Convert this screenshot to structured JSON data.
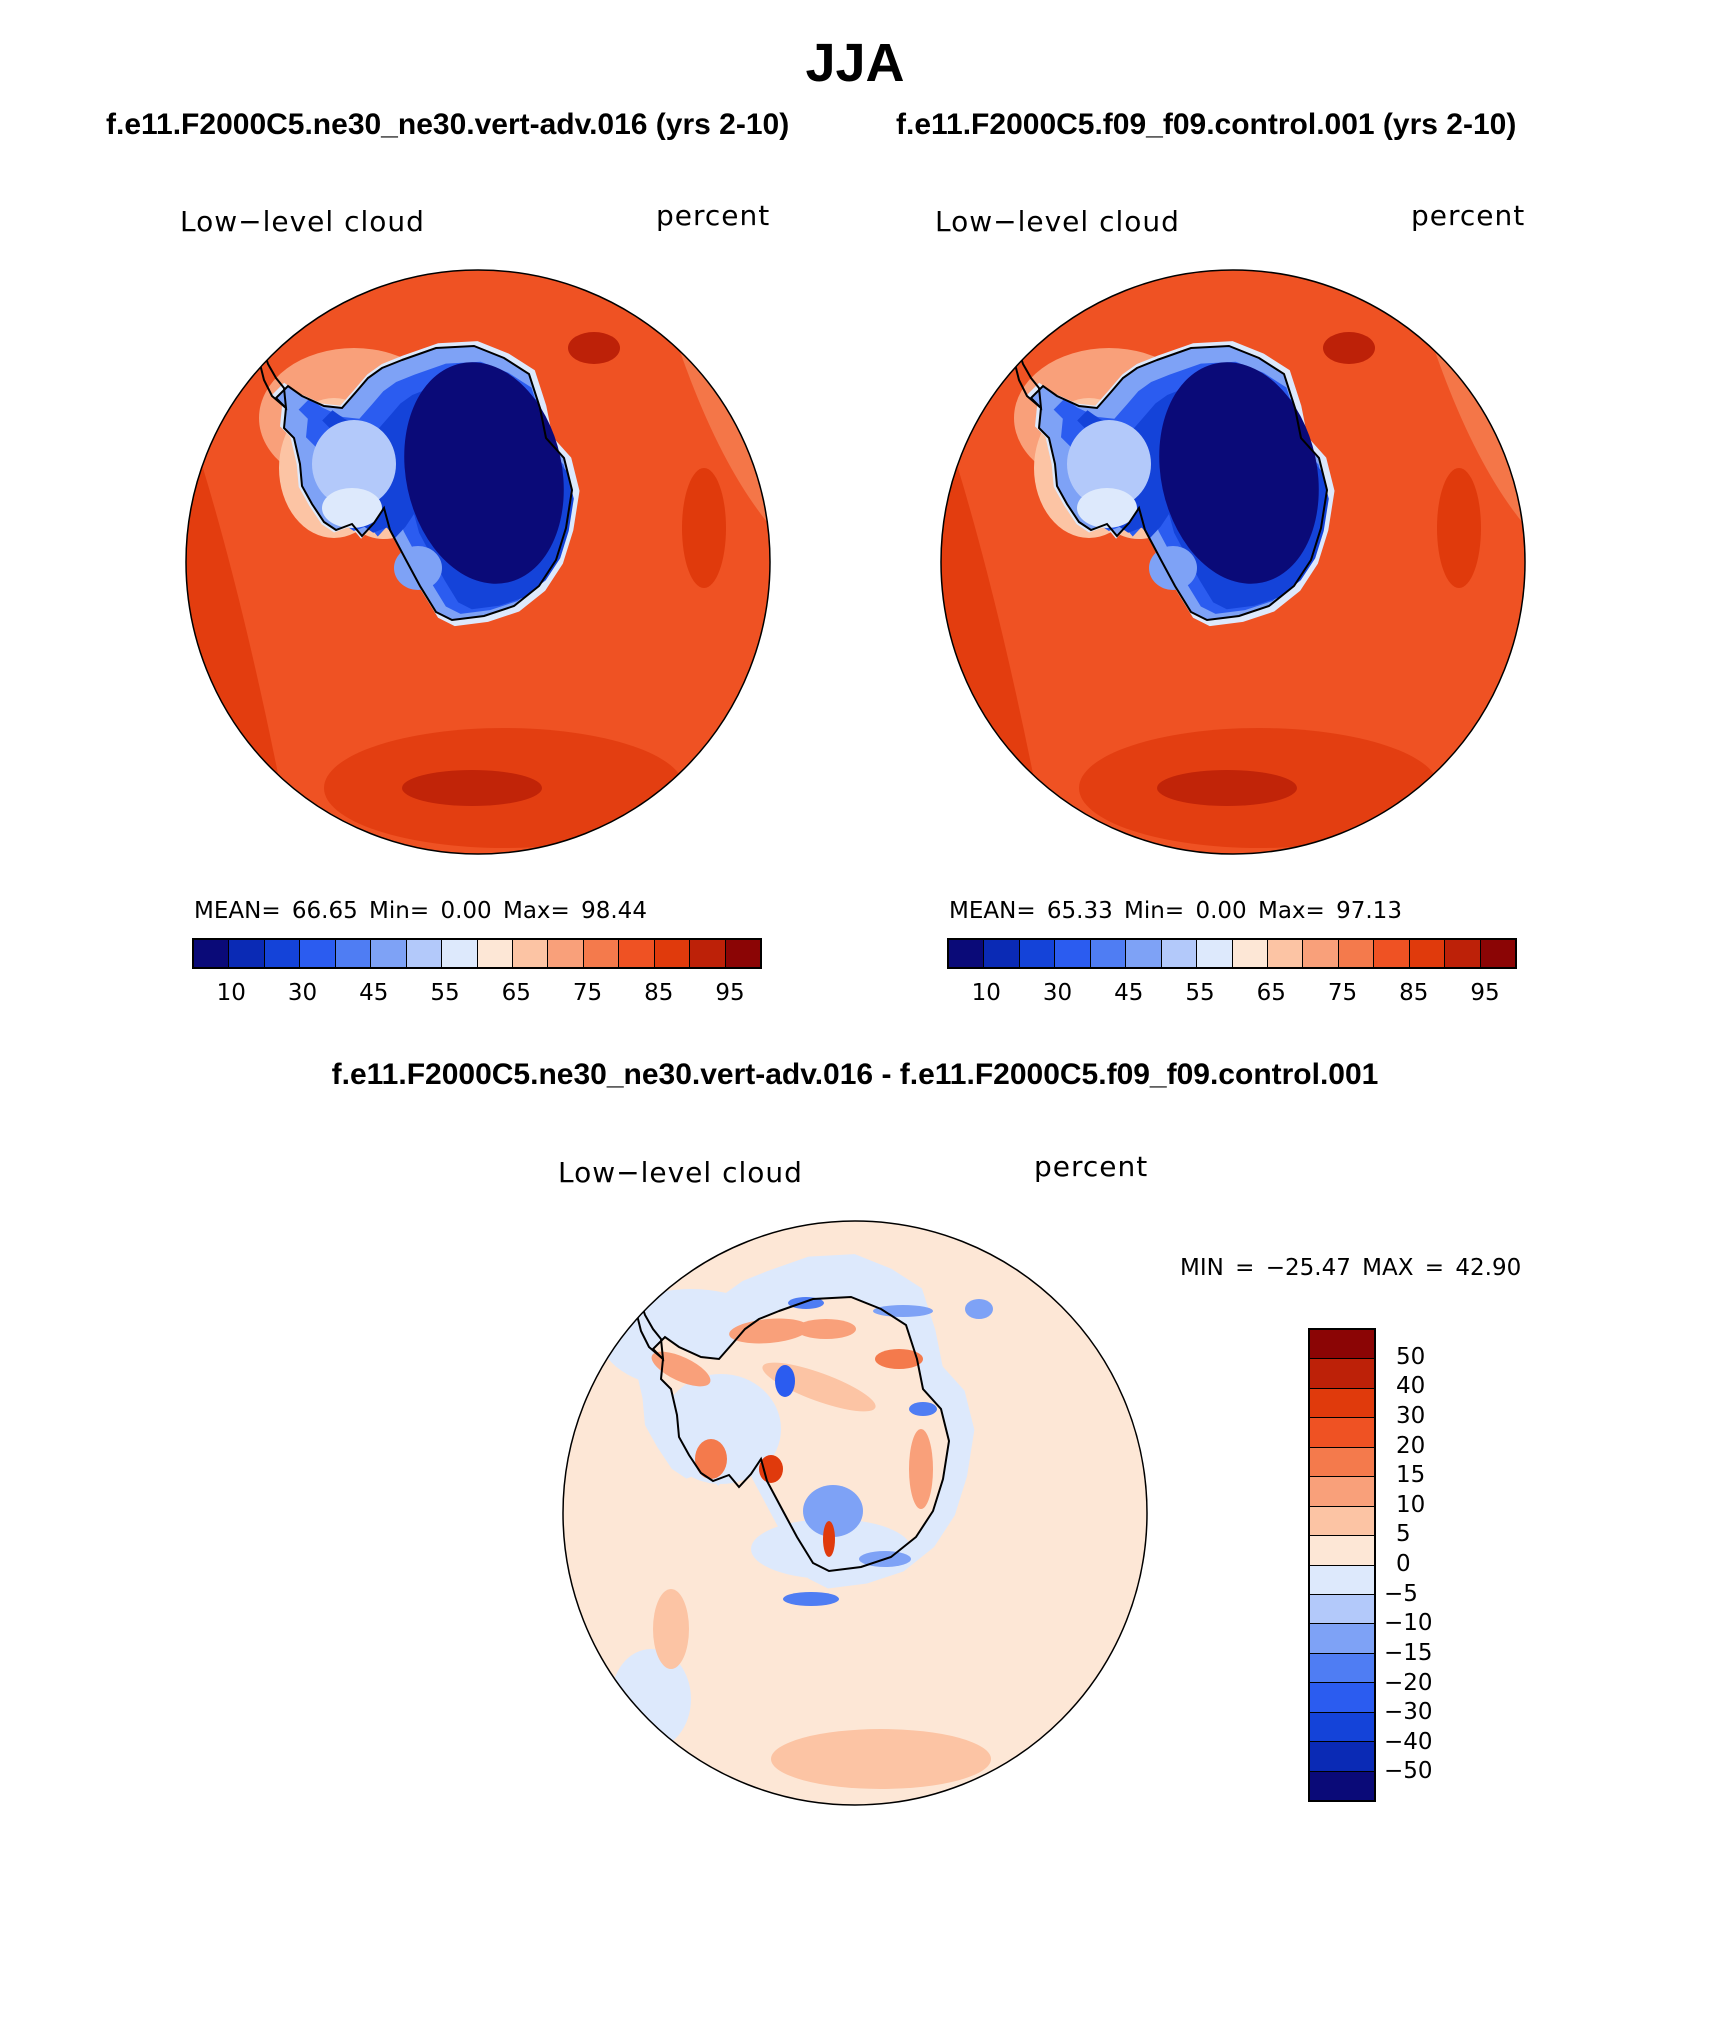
{
  "figure": {
    "title": "JJA",
    "case_a_title": "f.e11.F2000C5.ne30_ne30.vert-adv.016 (yrs 2-10)",
    "case_b_title": "f.e11.F2000C5.f09_f09.control.001 (yrs 2-10)",
    "diff_title": "f.e11.F2000C5.ne30_ne30.vert-adv.016 - f.e11.F2000C5.f09_f09.control.001"
  },
  "panels": [
    {
      "variable": "Low−level cloud",
      "units": "percent",
      "stats": "MEAN=   66.65   Min=     0.00   Max=   98.44"
    },
    {
      "variable": "Low−level cloud",
      "units": "percent",
      "stats": "MEAN=   65.33   Min=     0.00   Max=   97.13"
    }
  ],
  "diff_panel": {
    "variable": "Low−level cloud",
    "units": "percent",
    "stats": "MIN  =  −25.47  MAX  =    42.90"
  },
  "chart_data": [
    {
      "type": "heatmap",
      "projection": "south polar stereographic",
      "field": "Low-level cloud (percent)",
      "mean": 66.65,
      "min": 0.0,
      "max": 98.44,
      "colorbar_levels": [
        10,
        30,
        45,
        55,
        65,
        75,
        85,
        95
      ],
      "colorbar_tick_labels": [
        "10",
        "30",
        "45",
        "55",
        "65",
        "75",
        "85",
        "95"
      ],
      "colorbar_colors": [
        "#0a0a78",
        "#0a2ab5",
        "#1443d9",
        "#2b5cf0",
        "#4f7df3",
        "#7ea2f6",
        "#b3c9fa",
        "#dde9fc",
        "#fde7d6",
        "#fcc4a4",
        "#f9a07a",
        "#f47a4c",
        "#ef5223",
        "#e03a0c",
        "#bd2108",
        "#8b0505"
      ],
      "grid": false
    },
    {
      "type": "heatmap",
      "projection": "south polar stereographic",
      "field": "Low-level cloud (percent)",
      "mean": 65.33,
      "min": 0.0,
      "max": 97.13,
      "colorbar_levels": [
        10,
        30,
        45,
        55,
        65,
        75,
        85,
        95
      ],
      "colorbar_tick_labels": [
        "10",
        "30",
        "45",
        "55",
        "65",
        "75",
        "85",
        "95"
      ],
      "colorbar_colors": [
        "#0a0a78",
        "#0a2ab5",
        "#1443d9",
        "#2b5cf0",
        "#4f7df3",
        "#7ea2f6",
        "#b3c9fa",
        "#dde9fc",
        "#fde7d6",
        "#fcc4a4",
        "#f9a07a",
        "#f47a4c",
        "#ef5223",
        "#e03a0c",
        "#bd2108",
        "#8b0505"
      ],
      "grid": false
    },
    {
      "type": "heatmap",
      "projection": "south polar stereographic",
      "field": "Low-level cloud difference (percent)",
      "min": -25.47,
      "max": 42.9,
      "colorbar_levels": [
        50,
        40,
        30,
        20,
        15,
        10,
        5,
        0,
        -5,
        -10,
        -15,
        -20,
        -30,
        -40,
        -50
      ],
      "colorbar_tick_labels": [
        "50",
        "40",
        "30",
        "20",
        "15",
        "10",
        "5",
        "0",
        "−5",
        "−10",
        "−15",
        "−20",
        "−30",
        "−40",
        "−50"
      ],
      "colorbar_colors": [
        "#8b0505",
        "#bd2108",
        "#e03a0c",
        "#ef5223",
        "#f47a4c",
        "#f9a07a",
        "#fcc4a4",
        "#fde7d6",
        "#dde9fc",
        "#b3c9fa",
        "#7ea2f6",
        "#4f7df3",
        "#2b5cf0",
        "#1443d9",
        "#0a2ab5",
        "#0a0a78"
      ],
      "legend_position": "right",
      "grid": false
    }
  ]
}
